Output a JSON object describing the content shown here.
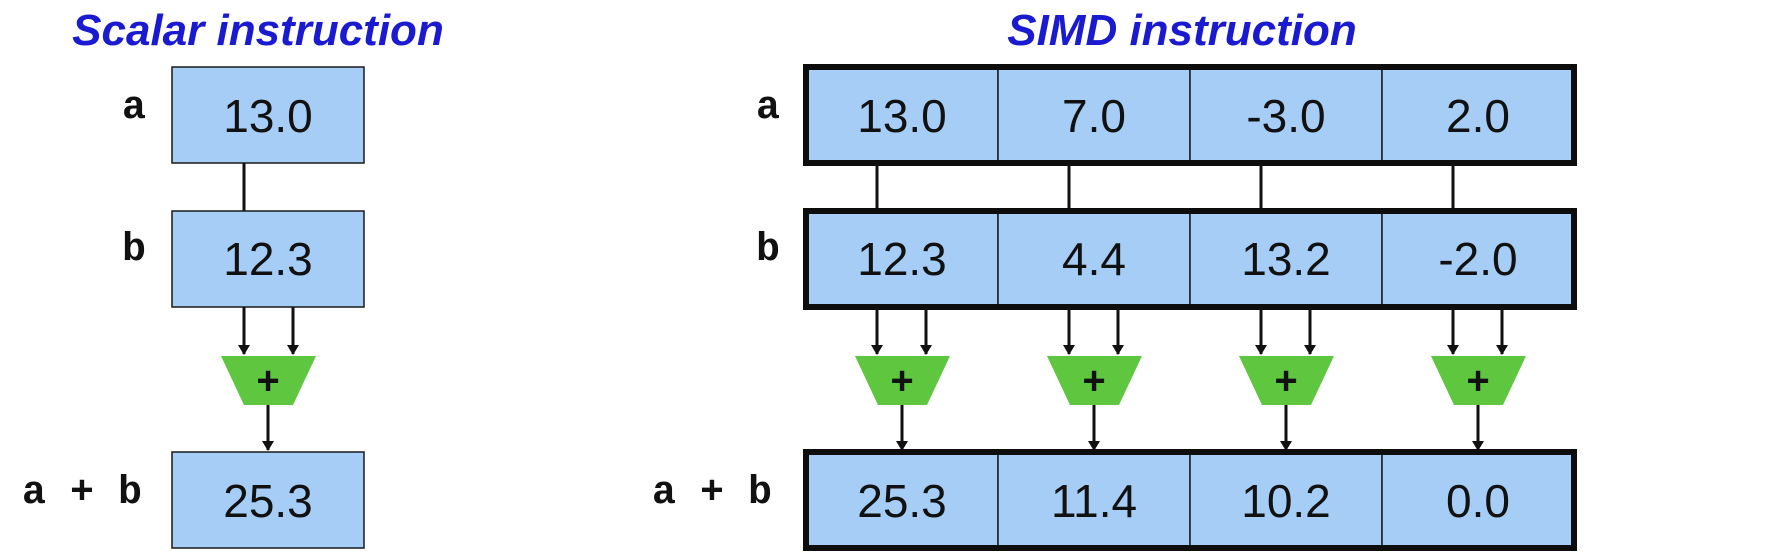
{
  "scalar": {
    "title": "Scalar instruction",
    "labels": {
      "a": "a",
      "b": "b",
      "sum": "a + b"
    },
    "a": "13.0",
    "b": "12.3",
    "sum": "25.3",
    "op": "+"
  },
  "simd": {
    "title": "SIMD instruction",
    "labels": {
      "a": "a",
      "b": "b",
      "sum": "a + b"
    },
    "a": [
      "13.0",
      "7.0",
      "-3.0",
      "2.0"
    ],
    "b": [
      "12.3",
      "4.4",
      "13.2",
      "-2.0"
    ],
    "sum": [
      "25.3",
      "11.4",
      "10.2",
      "0.0"
    ],
    "op": "+"
  },
  "colors": {
    "title": "#1a1ad0",
    "cell_fill": "#a6cdf5",
    "adder_fill": "#5ec63f",
    "stroke": "#111111"
  }
}
